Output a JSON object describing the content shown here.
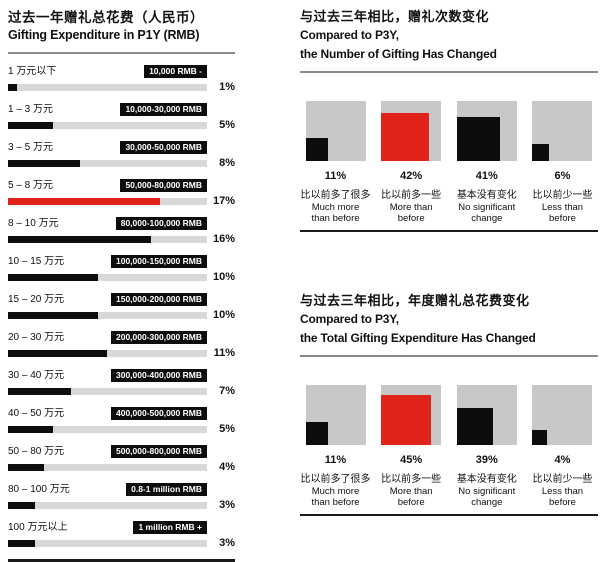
{
  "colors": {
    "red": "#e2231a",
    "bar_black": "#0d0d0d",
    "bar_track": "#d8d8d8",
    "square_bg": "#c8c8c8",
    "divider_gray": "#8a8a8a",
    "divider_black": "#1a1a1a"
  },
  "chart_data": [
    {
      "type": "bar",
      "orientation": "horizontal",
      "title_cn": "过去一年赠礼总花费（人民币）",
      "title_en": "Gifting Expenditure in P1Y (RMB)",
      "unit": "%",
      "xlim_note": "bar lengths scaled so 17% is the longest bar",
      "bar_scale_pct_per_point": 4.5,
      "rows": [
        {
          "label_cn": "1 万元以下",
          "label_en": "10,000 RMB -",
          "value": 1,
          "pct_label": "1%",
          "color": "black"
        },
        {
          "label_cn": "1 – 3 万元",
          "label_en": "10,000-30,000 RMB",
          "value": 5,
          "pct_label": "5%",
          "color": "black"
        },
        {
          "label_cn": "3 – 5 万元",
          "label_en": "30,000-50,000 RMB",
          "value": 8,
          "pct_label": "8%",
          "color": "black"
        },
        {
          "label_cn": "5 – 8 万元",
          "label_en": "50,000-80,000 RMB",
          "value": 17,
          "pct_label": "17%",
          "color": "red"
        },
        {
          "label_cn": "8 – 10 万元",
          "label_en": "80,000-100,000 RMB",
          "value": 16,
          "pct_label": "16%",
          "color": "black"
        },
        {
          "label_cn": "10 – 15 万元",
          "label_en": "100,000-150,000 RMB",
          "value": 10,
          "pct_label": "10%",
          "color": "black"
        },
        {
          "label_cn": "15 – 20 万元",
          "label_en": "150,000-200,000 RMB",
          "value": 10,
          "pct_label": "10%",
          "color": "black"
        },
        {
          "label_cn": "20 – 30 万元",
          "label_en": "200,000-300,000 RMB",
          "value": 11,
          "pct_label": "11%",
          "color": "black"
        },
        {
          "label_cn": "30 – 40 万元",
          "label_en": "300,000-400,000 RMB",
          "value": 7,
          "pct_label": "7%",
          "color": "black"
        },
        {
          "label_cn": "40 – 50 万元",
          "label_en": "400,000-500,000 RMB",
          "value": 5,
          "pct_label": "5%",
          "color": "black"
        },
        {
          "label_cn": "50 – 80 万元",
          "label_en": "500,000-800,000 RMB",
          "value": 4,
          "pct_label": "4%",
          "color": "black"
        },
        {
          "label_cn": "80 – 100 万元",
          "label_en": "0.8-1 million RMB",
          "value": 3,
          "pct_label": "3%",
          "color": "black"
        },
        {
          "label_cn": "100 万元以上",
          "label_en": "1 million RMB +",
          "value": 3,
          "pct_label": "3%",
          "color": "black"
        }
      ]
    },
    {
      "type": "bar",
      "orientation": "vertical-squares",
      "title_cn": "与过去三年相比，赠礼次数变化",
      "title_en_1": "Compared to P3Y,",
      "title_en_2": "the Number of Gifting Has Changed",
      "unit": "%",
      "columns": [
        {
          "value": 11,
          "pct_label": "11%",
          "label_cn": "比以前多了很多",
          "label_en_1": "Much more",
          "label_en_2": "than before",
          "color": "black",
          "square_scale": 0.38
        },
        {
          "value": 42,
          "pct_label": "42%",
          "label_cn": "比以前多一些",
          "label_en_1": "More than",
          "label_en_2": "before",
          "color": "red",
          "square_scale": 0.8
        },
        {
          "value": 41,
          "pct_label": "41%",
          "label_cn": "基本没有变化",
          "label_en_1": "No significant",
          "label_en_2": "change",
          "color": "black",
          "square_scale": 0.72
        },
        {
          "value": 6,
          "pct_label": "6%",
          "label_cn": "比以前少一些",
          "label_en_1": "Less than",
          "label_en_2": "before",
          "color": "black",
          "square_scale": 0.28
        }
      ]
    },
    {
      "type": "bar",
      "orientation": "vertical-squares",
      "title_cn": "与过去三年相比，年度赠礼总花费变化",
      "title_en_1": "Compared to P3Y,",
      "title_en_2": "the Total Gifting Expenditure Has Changed",
      "unit": "%",
      "columns": [
        {
          "value": 11,
          "pct_label": "11%",
          "label_cn": "比以前多了很多",
          "label_en_1": "Much more",
          "label_en_2": "than before",
          "color": "black",
          "square_scale": 0.38
        },
        {
          "value": 45,
          "pct_label": "45%",
          "label_cn": "比以前多一些",
          "label_en_1": "More than",
          "label_en_2": "before",
          "color": "red",
          "square_scale": 0.83
        },
        {
          "value": 39,
          "pct_label": "39%",
          "label_cn": "基本没有变化",
          "label_en_1": "No significant",
          "label_en_2": "change",
          "color": "black",
          "square_scale": 0.61
        },
        {
          "value": 4,
          "pct_label": "4%",
          "label_cn": "比以前少一些",
          "label_en_1": "Less than",
          "label_en_2": "before",
          "color": "black",
          "square_scale": 0.24
        }
      ]
    }
  ]
}
